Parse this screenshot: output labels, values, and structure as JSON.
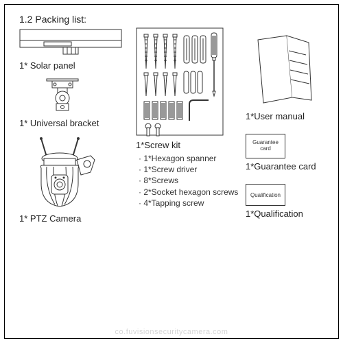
{
  "heading": "1.2 Packing list:",
  "col1": {
    "solar_panel_label": "1* Solar panel",
    "bracket_label": "1* Universal bracket",
    "camera_label": "1* PTZ Camera"
  },
  "col2": {
    "screwkit_label": "1*Screw kit",
    "screwkit_items": [
      "1*Hexagon spanner",
      "1*Screw driver",
      "8*Screws",
      "2*Socket hexagon screws",
      "4*Tapping screw"
    ]
  },
  "col3": {
    "manual_label": "1*User manual",
    "guarantee_boxtext": "Guarantee card",
    "guarantee_label": "1*Guarantee card",
    "qualification_boxtext": "Qualification",
    "qualification_label": "1*Qualification"
  },
  "watermark": "co.fuvisionsecuritycamera.com",
  "colors": {
    "stroke": "#333333",
    "fill_bg": "#ffffff",
    "frame": "#000000",
    "text": "#222222",
    "watermark": "#d6d6d6"
  }
}
